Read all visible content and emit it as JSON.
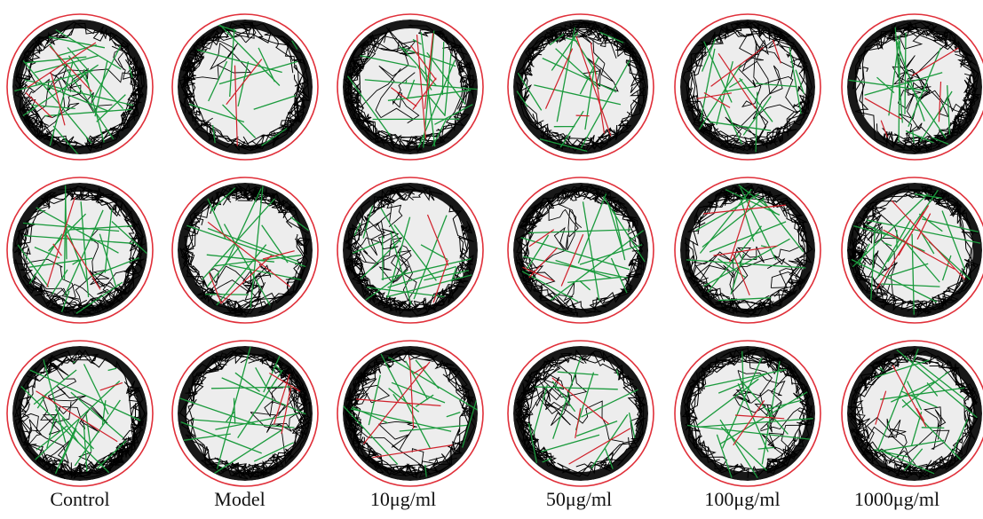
{
  "figure": {
    "columns": [
      {
        "label": "Control"
      },
      {
        "label": "Model"
      },
      {
        "label": "10μg/ml"
      },
      {
        "label": "50μg/ml"
      },
      {
        "label": "100μg/ml"
      },
      {
        "label": "1000μg/ml"
      }
    ],
    "rows": 3,
    "colors": {
      "well_rim": "#e0303a",
      "well_fill": "#ededed",
      "track_slow": "#000000",
      "track_medium": "#1a9a3c",
      "track_fast": "#d0202a"
    }
  }
}
